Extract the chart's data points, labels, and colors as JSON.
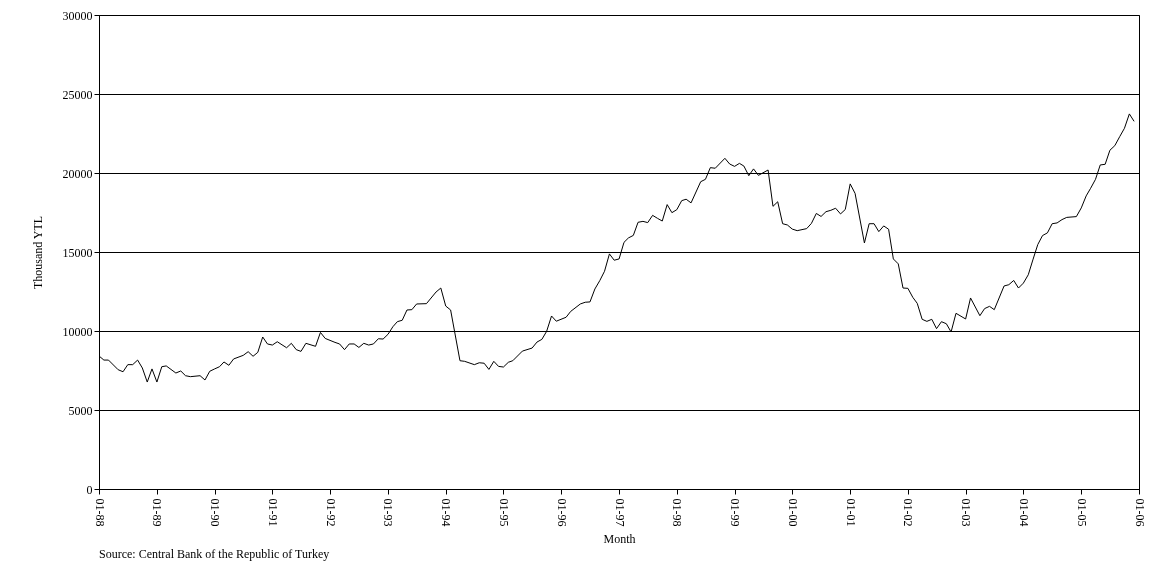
{
  "chart_data": {
    "type": "line",
    "xlabel": "Month",
    "ylabel": "Thousand YTL",
    "annotations": [
      "Source: Central Bank of the Republic of Turkey"
    ],
    "x": [
      "1988-01",
      "1988-02",
      "1988-03",
      "1988-05",
      "1988-06",
      "1988-07",
      "1988-08",
      "1988-09",
      "1988-10",
      "1988-11",
      "1988-12",
      "1989-01",
      "1989-02",
      "1989-03",
      "1989-05",
      "1989-06",
      "1989-07",
      "1989-08",
      "1989-10",
      "1989-11",
      "1989-12",
      "1990-01",
      "1990-02",
      "1990-03",
      "1990-04",
      "1990-05",
      "1990-07",
      "1990-08",
      "1990-09",
      "1990-10",
      "1990-11",
      "1990-12",
      "1991-01",
      "1991-02",
      "1991-04",
      "1991-05",
      "1991-06",
      "1991-07",
      "1991-08",
      "1991-10",
      "1991-11",
      "1991-12",
      "1992-02",
      "1992-03",
      "1992-04",
      "1992-05",
      "1992-06",
      "1992-07",
      "1992-08",
      "1992-09",
      "1992-10",
      "1992-11",
      "1992-12",
      "1993-01",
      "1993-02",
      "1993-03",
      "1993-04",
      "1993-05",
      "1993-06",
      "1993-07",
      "1993-09",
      "1993-11",
      "1993-12",
      "1994-01",
      "1994-02",
      "1994-04",
      "1994-05",
      "1994-07",
      "1994-08",
      "1994-09",
      "1994-10",
      "1994-11",
      "1994-12",
      "1995-01",
      "1995-02",
      "1995-03",
      "1995-05",
      "1995-07",
      "1995-08",
      "1995-09",
      "1995-10",
      "1995-11",
      "1995-12",
      "1996-02",
      "1996-03",
      "1996-05",
      "1996-06",
      "1996-07",
      "1996-08",
      "1996-09",
      "1996-10",
      "1996-11",
      "1996-12",
      "1997-01",
      "1997-02",
      "1997-03",
      "1997-04",
      "1997-05",
      "1997-06",
      "1997-07",
      "1997-08",
      "1997-09",
      "1997-10",
      "1997-11",
      "1997-12",
      "1998-01",
      "1998-02",
      "1998-03",
      "1998-04",
      "1998-06",
      "1998-07",
      "1998-08",
      "1998-09",
      "1998-11",
      "1998-12",
      "1999-01",
      "1999-02",
      "1999-03",
      "1999-04",
      "1999-05",
      "1999-06",
      "1999-08",
      "1999-09",
      "1999-10",
      "1999-11",
      "1999-12",
      "2000-01",
      "2000-02",
      "2000-04",
      "2000-05",
      "2000-06",
      "2000-07",
      "2000-08",
      "2000-09",
      "2000-10",
      "2000-11",
      "2000-12",
      "2001-01",
      "2001-02",
      "2001-04",
      "2001-05",
      "2001-06",
      "2001-07",
      "2001-08",
      "2001-09",
      "2001-10",
      "2001-11",
      "2001-12",
      "2002-01",
      "2002-02",
      "2002-03",
      "2002-04",
      "2002-05",
      "2002-06",
      "2002-07",
      "2002-08",
      "2002-09",
      "2002-10",
      "2002-11",
      "2003-01",
      "2003-02",
      "2003-04",
      "2003-05",
      "2003-06",
      "2003-07",
      "2003-09",
      "2003-10",
      "2003-11",
      "2003-12",
      "2004-01",
      "2004-02",
      "2004-03",
      "2004-04",
      "2004-05",
      "2004-06",
      "2004-07",
      "2004-08",
      "2004-09",
      "2004-10",
      "2004-12",
      "2005-01",
      "2005-02",
      "2005-03",
      "2005-04",
      "2005-05",
      "2005-06",
      "2005-07",
      "2005-08",
      "2005-09",
      "2005-10",
      "2005-11",
      "2005-12"
    ],
    "series": [
      {
        "color": "#000000",
        "values": [
          8420,
          8160,
          8160,
          7550,
          7420,
          7870,
          7870,
          8160,
          7660,
          6770,
          7600,
          6770,
          7740,
          7790,
          7340,
          7470,
          7170,
          7110,
          7170,
          6900,
          7450,
          7600,
          7740,
          8040,
          7830,
          8230,
          8460,
          8690,
          8400,
          8650,
          9620,
          9180,
          9110,
          9320,
          8940,
          9220,
          8820,
          8710,
          9220,
          9030,
          9910,
          9530,
          9280,
          9180,
          8820,
          9180,
          9180,
          8960,
          9220,
          9110,
          9180,
          9510,
          9490,
          9790,
          10270,
          10590,
          10680,
          11330,
          11350,
          11710,
          11730,
          12470,
          12720,
          11580,
          11330,
          8120,
          8080,
          7870,
          7990,
          7960,
          7570,
          8080,
          7760,
          7720,
          8020,
          8120,
          8730,
          8920,
          9300,
          9470,
          9980,
          10950,
          10620,
          10870,
          11240,
          11710,
          11820,
          11840,
          12660,
          13190,
          13780,
          14880,
          14480,
          14560,
          15610,
          15890,
          16050,
          16880,
          16940,
          16860,
          17320,
          17130,
          16960,
          18000,
          17490,
          17680,
          18250,
          18340,
          18110,
          19450,
          19600,
          20340,
          20300,
          20930,
          20570,
          20420,
          20610,
          20440,
          19830,
          20260,
          19850,
          20190,
          17890,
          18180,
          16790,
          16710,
          16450,
          16350,
          16480,
          16810,
          17440,
          17250,
          17550,
          17640,
          17770,
          17410,
          17690,
          19310,
          18710,
          15570,
          16790,
          16790,
          16290,
          16650,
          16440,
          14560,
          14250,
          12720,
          12700,
          12130,
          11750,
          10740,
          10610,
          10740,
          10150,
          10590,
          10460,
          9940,
          11120,
          10760,
          12090,
          10970,
          11420,
          11560,
          11350,
          12850,
          12930,
          13200,
          12720,
          13030,
          13560,
          14500,
          15470,
          16040,
          16210,
          16790,
          16840,
          17050,
          17190,
          17240,
          17790,
          18550,
          19030,
          19600,
          20510,
          20550,
          21440,
          21730,
          22300,
          22830,
          23740,
          23270
        ]
      }
    ],
    "xlim": [
      "1988-01",
      "2006-01"
    ],
    "xticks": [
      {
        "value": "1988-01",
        "label": "01-88"
      },
      {
        "value": "1989-01",
        "label": "01-89"
      },
      {
        "value": "1990-01",
        "label": "01-90"
      },
      {
        "value": "1991-01",
        "label": "01-91"
      },
      {
        "value": "1992-01",
        "label": "01-92"
      },
      {
        "value": "1993-01",
        "label": "01-93"
      },
      {
        "value": "1994-01",
        "label": "01-94"
      },
      {
        "value": "1995-01",
        "label": "01-95"
      },
      {
        "value": "1996-01",
        "label": "01-96"
      },
      {
        "value": "1997-01",
        "label": "01-97"
      },
      {
        "value": "1998-01",
        "label": "01-98"
      },
      {
        "value": "1999-01",
        "label": "01-99"
      },
      {
        "value": "2000-01",
        "label": "01-00"
      },
      {
        "value": "2001-01",
        "label": "01-01"
      },
      {
        "value": "2002-01",
        "label": "01-02"
      },
      {
        "value": "2003-01",
        "label": "01-03"
      },
      {
        "value": "2004-01",
        "label": "01-04"
      },
      {
        "value": "2005-01",
        "label": "01-05"
      },
      {
        "value": "2006-01",
        "label": "01-06"
      }
    ],
    "ylim": [
      0,
      30000
    ],
    "yticks": [
      0,
      5000,
      10000,
      15000,
      20000,
      25000,
      30000
    ],
    "grid": "y",
    "marker": "none",
    "line_style": "solid"
  }
}
